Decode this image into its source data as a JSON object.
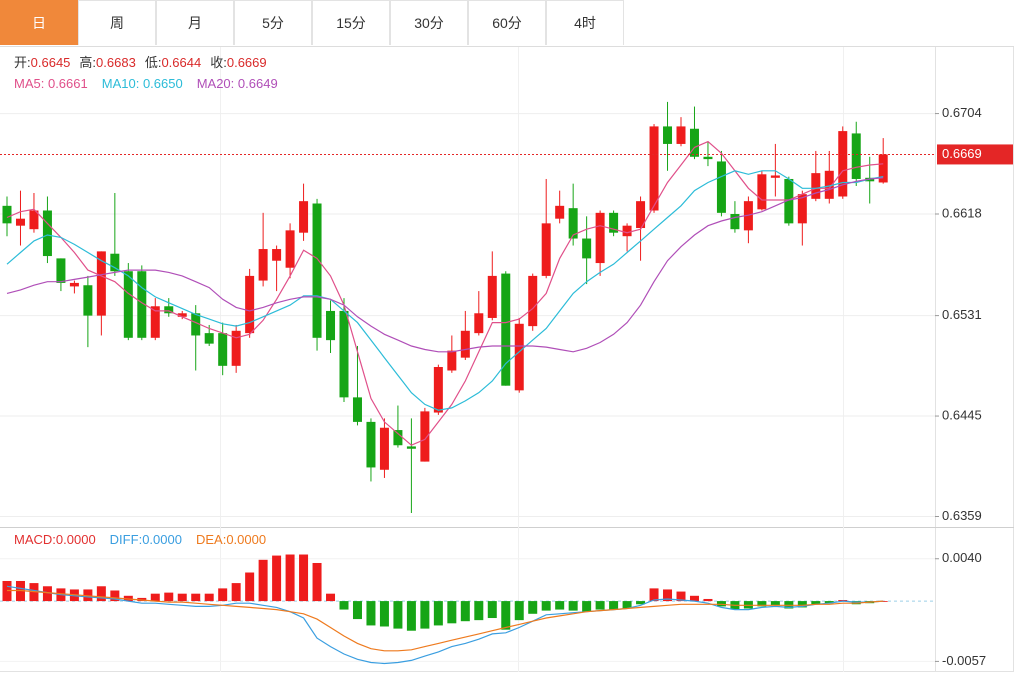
{
  "tabs": [
    "日",
    "周",
    "月",
    "5分",
    "15分",
    "30分",
    "60分",
    "4时"
  ],
  "active_tab": 0,
  "chart_data": [
    {
      "type": "candlestick",
      "ohlc_labels": [
        "开",
        "高",
        "低",
        "收"
      ],
      "sep": ":",
      "up_color": "#ee1c1c",
      "down_color": "#16a516",
      "label_color": "#d92a2a",
      "last_price_color": "#e42626",
      "open": [
        0.6625,
        0.6608,
        0.6605,
        0.6621,
        0.658,
        0.6556,
        0.6557,
        0.6531,
        0.6584,
        0.6569,
        0.6569,
        0.6512,
        0.6539,
        0.653,
        0.6533,
        0.6516,
        0.6516,
        0.6488,
        0.6516,
        0.6561,
        0.6578,
        0.6572,
        0.6602,
        0.6627,
        0.6535,
        0.6535,
        0.6461,
        0.644,
        0.6399,
        0.6433,
        0.6419,
        0.6406,
        0.6448,
        0.6484,
        0.6495,
        0.6516,
        0.6529,
        0.6567,
        0.6467,
        0.6522,
        0.6565,
        0.6614,
        0.6623,
        0.6597,
        0.6576,
        0.6619,
        0.6599,
        0.6606,
        0.6621,
        0.6693,
        0.6678,
        0.6691,
        0.6667,
        0.6663,
        0.6618,
        0.6604,
        0.6622,
        0.6649,
        0.6648,
        0.661,
        0.6631,
        0.6631,
        0.6633,
        0.6687,
        0.6649,
        0.6645
      ],
      "high": [
        0.6633,
        0.6638,
        0.6636,
        0.6633,
        0.658,
        0.6561,
        0.6565,
        0.6586,
        0.6636,
        0.6576,
        0.6574,
        0.6546,
        0.6546,
        0.6535,
        0.654,
        0.6523,
        0.6525,
        0.6523,
        0.6571,
        0.6619,
        0.6591,
        0.661,
        0.6644,
        0.6631,
        0.6544,
        0.6546,
        0.6505,
        0.6443,
        0.6443,
        0.6454,
        0.6443,
        0.6452,
        0.6489,
        0.6514,
        0.6535,
        0.6552,
        0.6586,
        0.6569,
        0.6529,
        0.6567,
        0.6648,
        0.6638,
        0.6644,
        0.6616,
        0.6621,
        0.6621,
        0.661,
        0.6633,
        0.6695,
        0.6714,
        0.6701,
        0.671,
        0.668,
        0.6672,
        0.6629,
        0.6633,
        0.6655,
        0.6678,
        0.665,
        0.6638,
        0.6672,
        0.6672,
        0.6693,
        0.6697,
        0.6667,
        0.6683
      ],
      "low": [
        0.6599,
        0.6591,
        0.6602,
        0.6576,
        0.6552,
        0.655,
        0.6504,
        0.6514,
        0.6565,
        0.651,
        0.651,
        0.651,
        0.653,
        0.6528,
        0.6484,
        0.6505,
        0.648,
        0.6482,
        0.6512,
        0.6556,
        0.6552,
        0.6563,
        0.6595,
        0.6501,
        0.6499,
        0.6457,
        0.6437,
        0.6389,
        0.6392,
        0.6418,
        0.6362,
        0.6406,
        0.6446,
        0.6482,
        0.6493,
        0.6514,
        0.6527,
        0.6471,
        0.6465,
        0.6518,
        0.6563,
        0.661,
        0.6591,
        0.6558,
        0.6565,
        0.6599,
        0.6586,
        0.6578,
        0.6619,
        0.6655,
        0.6676,
        0.6665,
        0.6659,
        0.6616,
        0.6602,
        0.6593,
        0.6621,
        0.6633,
        0.6608,
        0.6591,
        0.6629,
        0.6627,
        0.6631,
        0.6642,
        0.6627,
        0.6644
      ],
      "close": [
        0.661,
        0.6614,
        0.6621,
        0.6582,
        0.6559,
        0.6559,
        0.6531,
        0.6586,
        0.6569,
        0.6512,
        0.6512,
        0.6539,
        0.6533,
        0.6533,
        0.6514,
        0.6507,
        0.6488,
        0.6518,
        0.6565,
        0.6588,
        0.6588,
        0.6604,
        0.6629,
        0.6512,
        0.651,
        0.6461,
        0.644,
        0.6401,
        0.6435,
        0.642,
        0.6417,
        0.6449,
        0.6487,
        0.6501,
        0.6518,
        0.6533,
        0.6565,
        0.6471,
        0.6524,
        0.6565,
        0.661,
        0.6625,
        0.6597,
        0.658,
        0.6619,
        0.6602,
        0.6608,
        0.6629,
        0.6693,
        0.6678,
        0.6693,
        0.6667,
        0.6665,
        0.6619,
        0.6605,
        0.6629,
        0.6652,
        0.6651,
        0.661,
        0.6635,
        0.6653,
        0.6655,
        0.6689,
        0.6648,
        0.6646,
        0.6669
      ],
      "line_sep": ": ",
      "lines": [
        {
          "name": "MA5",
          "color": "#e0508a",
          "last_label": "0.6661",
          "values": [
            0.6615,
            0.662,
            0.6622,
            0.661,
            0.6598,
            0.6585,
            0.657,
            0.6565,
            0.656,
            0.655,
            0.6542,
            0.6535,
            0.6535,
            0.653,
            0.6525,
            0.652,
            0.6516,
            0.6512,
            0.6515,
            0.6527,
            0.6545,
            0.6565,
            0.6587,
            0.658,
            0.6565,
            0.654,
            0.65,
            0.646,
            0.644,
            0.643,
            0.642,
            0.6425,
            0.644,
            0.6455,
            0.6475,
            0.65,
            0.6525,
            0.6525,
            0.6528,
            0.6537,
            0.655,
            0.658,
            0.66,
            0.6605,
            0.6608,
            0.6605,
            0.6602,
            0.6605,
            0.6625,
            0.6645,
            0.666,
            0.6675,
            0.668,
            0.667,
            0.6655,
            0.664,
            0.663,
            0.663,
            0.663,
            0.6635,
            0.664,
            0.664,
            0.6655,
            0.6658,
            0.666,
            0.6661
          ]
        },
        {
          "name": "MA10",
          "color": "#2cbcd8",
          "last_label": "0.6650",
          "values": [
            0.6575,
            0.6585,
            0.6595,
            0.66,
            0.6598,
            0.6592,
            0.6585,
            0.6578,
            0.6572,
            0.6565,
            0.6555,
            0.6547,
            0.6542,
            0.6537,
            0.6532,
            0.6528,
            0.6524,
            0.6522,
            0.6525,
            0.653,
            0.6535,
            0.654,
            0.6548,
            0.6548,
            0.6545,
            0.6535,
            0.6525,
            0.651,
            0.6495,
            0.648,
            0.6465,
            0.6455,
            0.645,
            0.6452,
            0.6458,
            0.6465,
            0.6475,
            0.649,
            0.65,
            0.651,
            0.652,
            0.6535,
            0.655,
            0.656,
            0.6568,
            0.6575,
            0.6585,
            0.6595,
            0.6605,
            0.6615,
            0.6625,
            0.6638,
            0.6645,
            0.665,
            0.6655,
            0.6652,
            0.6655,
            0.6655,
            0.6648,
            0.664,
            0.664,
            0.6642,
            0.6645,
            0.6645,
            0.6648,
            0.665
          ]
        },
        {
          "name": "MA20",
          "color": "#b04fb8",
          "last_label": "0.6649",
          "values": [
            0.655,
            0.6553,
            0.6557,
            0.656,
            0.656,
            0.6562,
            0.6564,
            0.6566,
            0.6568,
            0.657,
            0.657,
            0.657,
            0.6568,
            0.6565,
            0.656,
            0.6555,
            0.6545,
            0.6538,
            0.6535,
            0.6538,
            0.6542,
            0.6545,
            0.6547,
            0.6547,
            0.6545,
            0.654,
            0.653,
            0.6522,
            0.6515,
            0.651,
            0.6505,
            0.6502,
            0.65,
            0.65,
            0.6502,
            0.6504,
            0.6505,
            0.6505,
            0.6505,
            0.6505,
            0.6504,
            0.6502,
            0.65,
            0.6503,
            0.6508,
            0.6515,
            0.6525,
            0.654,
            0.656,
            0.6578,
            0.659,
            0.66,
            0.6608,
            0.6612,
            0.6615,
            0.6617,
            0.662,
            0.6625,
            0.663,
            0.6632,
            0.6636,
            0.6639,
            0.6643,
            0.6646,
            0.6648,
            0.6649
          ]
        }
      ],
      "ylim": [
        0.635,
        0.6761
      ],
      "yticks": [
        0.6704,
        0.6618,
        0.6531,
        0.6445,
        0.6359
      ]
    },
    {
      "type": "macd",
      "sep": ":",
      "up_color": "#ee1c1c",
      "down_color": "#16a516",
      "zero_color": "#9ccfe8",
      "series": [
        {
          "name": "MACD",
          "color": "#e23030",
          "last_label": "0.0000",
          "values": [
            0.0019,
            0.0019,
            0.0017,
            0.0014,
            0.0012,
            0.0011,
            0.0011,
            0.0014,
            0.001,
            0.0005,
            0.0003,
            0.0007,
            0.0008,
            0.0007,
            0.0007,
            0.0007,
            0.0012,
            0.0017,
            0.0027,
            0.0039,
            0.0043,
            0.0044,
            0.0044,
            0.0036,
            0.0007,
            -0.0008,
            -0.0017,
            -0.0023,
            -0.0024,
            -0.0026,
            -0.0028,
            -0.0026,
            -0.0023,
            -0.0021,
            -0.0019,
            -0.0018,
            -0.0016,
            -0.0027,
            -0.0018,
            -0.0012,
            -0.0009,
            -0.0008,
            -0.0009,
            -0.001,
            -0.0008,
            -0.0008,
            -0.0007,
            -0.0003,
            0.0012,
            0.0011,
            0.0009,
            0.0005,
            0.0002,
            -0.0005,
            -0.0008,
            -0.0007,
            -0.0005,
            -0.0004,
            -0.0007,
            -0.0006,
            -0.0003,
            -0.0002,
            0.0001,
            -0.0003,
            -0.0002,
            0
          ]
        },
        {
          "name": "DIFF",
          "color": "#3a9ee0",
          "last_label": "0.0000",
          "values": [
            0.0014,
            0.0012,
            0.001,
            0.0008,
            0.0006,
            0.0005,
            0.0004,
            0.0003,
            0.0002,
            0,
            -0.0002,
            -0.0002,
            -0.0003,
            -0.0004,
            -0.0005,
            -0.0005,
            -0.0004,
            -0.0002,
            -0.0002,
            -0.0004,
            -0.0006,
            -0.001,
            -0.0016,
            -0.0035,
            -0.0043,
            -0.005,
            -0.0055,
            -0.0058,
            -0.0059,
            -0.0058,
            -0.0056,
            -0.0052,
            -0.0048,
            -0.0043,
            -0.004,
            -0.0036,
            -0.0031,
            -0.003,
            -0.0025,
            -0.0019,
            -0.0013,
            -0.0012,
            -0.0011,
            -0.001,
            -0.0009,
            -0.0008,
            -0.0007,
            -0.0004,
            0.0001,
            0.0002,
            0.0001,
            0,
            -0.0002,
            -0.0006,
            -0.0008,
            -0.0008,
            -0.0006,
            -0.0005,
            -0.0006,
            -0.0005,
            -0.0003,
            -0.0002,
            0,
            -0.0001,
            -0.0001,
            0
          ]
        },
        {
          "name": "DEA",
          "color": "#ee7a1e",
          "last_label": "0.0000",
          "values": [
            0.001,
            0.001,
            0.0009,
            0.0008,
            0.0007,
            0.0006,
            0.0005,
            0.0004,
            0.0003,
            0.0002,
            0.0001,
            0,
            -0.0001,
            -0.0001,
            -0.0002,
            -0.0003,
            -0.0004,
            -0.0005,
            -0.0006,
            -0.0007,
            -0.0008,
            -0.001,
            -0.0012,
            -0.0017,
            -0.0025,
            -0.0033,
            -0.004,
            -0.0045,
            -0.0047,
            -0.0047,
            -0.0046,
            -0.0043,
            -0.004,
            -0.0037,
            -0.0034,
            -0.0031,
            -0.0028,
            -0.0025,
            -0.0022,
            -0.0019,
            -0.0016,
            -0.0014,
            -0.0012,
            -0.001,
            -0.0009,
            -0.0008,
            -0.0007,
            -0.0006,
            -0.0005,
            -0.0004,
            -0.0003,
            -0.0003,
            -0.0003,
            -0.0003,
            -0.0004,
            -0.0004,
            -0.0004,
            -0.0004,
            -0.0004,
            -0.0004,
            -0.0003,
            -0.0003,
            -0.0002,
            -0.0002,
            -0.0001,
            0
          ]
        }
      ],
      "ylim": [
        -0.0067,
        0.007
      ],
      "yticks": [
        {
          "value": 0.004,
          "label": "0.0040"
        },
        {
          "value": -0.0057,
          "label": "-0.0057"
        }
      ]
    }
  ]
}
